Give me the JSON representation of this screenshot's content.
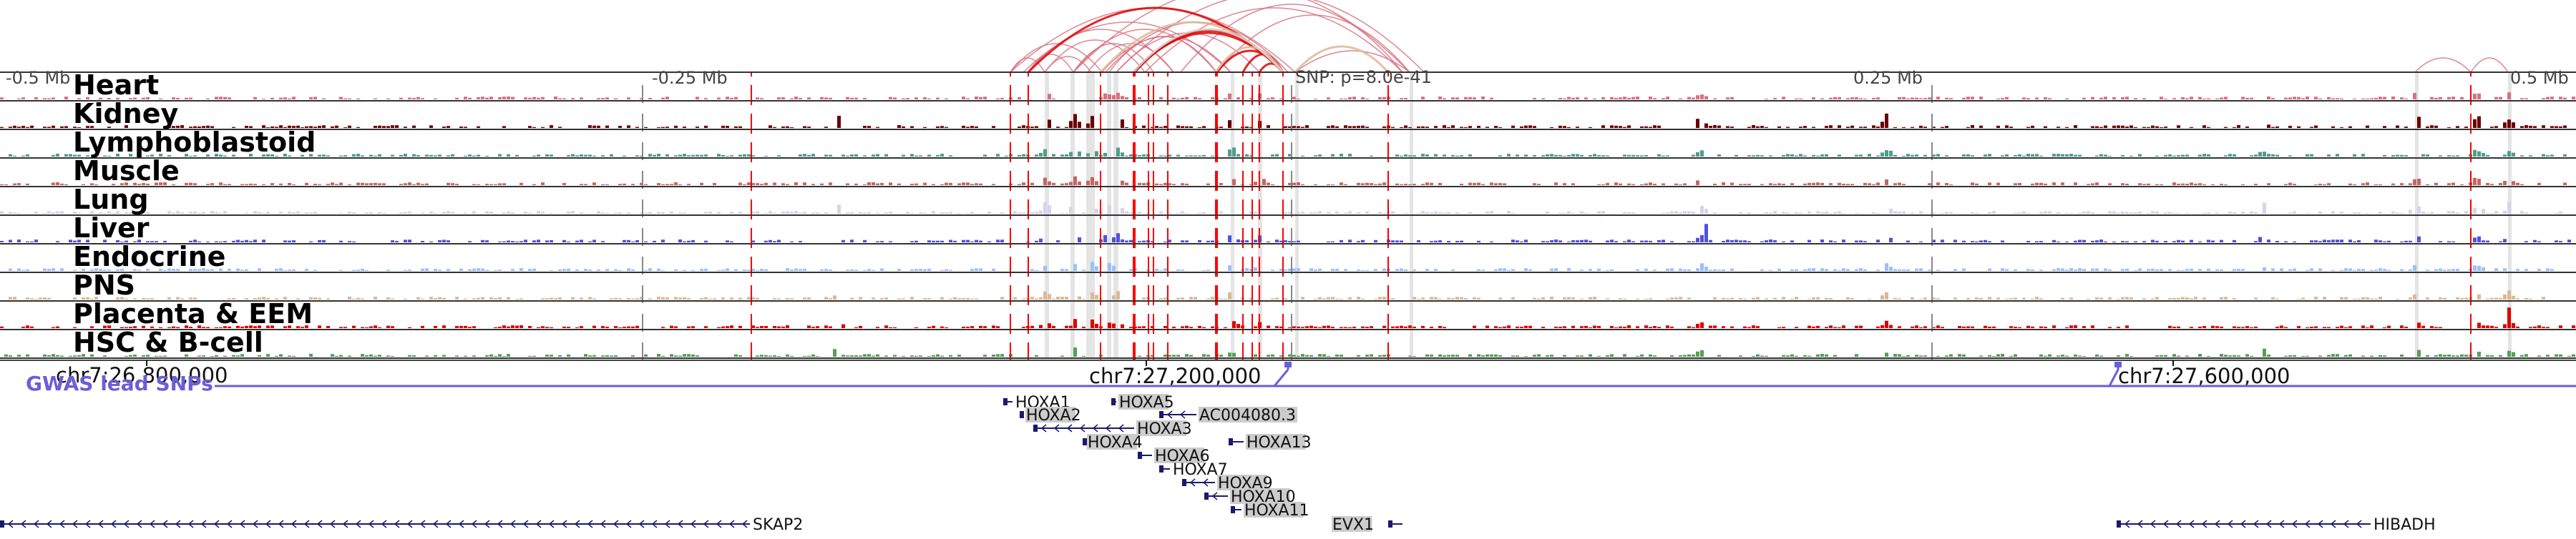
{
  "ruler": {
    "labels": [
      "-0.5 Mb",
      "-0.25 Mb",
      "0.25 Mb",
      "0.5 Mb"
    ],
    "snp_label": "SNP: p=8.0e-41"
  },
  "tracks": [
    {
      "name": "Heart",
      "color": "#d87080"
    },
    {
      "name": "Kidney",
      "color": "#6b0000"
    },
    {
      "name": "Lymphoblastoid",
      "color": "#4f9e8c"
    },
    {
      "name": "Muscle",
      "color": "#c56560"
    },
    {
      "name": "Lung",
      "color": "#dad2ea"
    },
    {
      "name": "Liver",
      "color": "#5050e0"
    },
    {
      "name": "Endocrine",
      "color": "#99c0ff"
    },
    {
      "name": "PNS",
      "color": "#ddb896"
    },
    {
      "name": "Placenta & EEM",
      "color": "#e00000"
    },
    {
      "name": "HSC & B-cell",
      "color": "#55a055"
    }
  ],
  "coordinates": {
    "left": "chr7:26,800,000",
    "center": "chr7:27,200,000",
    "right": "chr7:27,600,000"
  },
  "gwas": {
    "label": "GWAS lead SNPs",
    "color": "#6a5fd6"
  },
  "genes": [
    {
      "name": "HOXA1",
      "highlighted": false
    },
    {
      "name": "HOXA2",
      "highlighted": true
    },
    {
      "name": "HOXA3",
      "highlighted": true
    },
    {
      "name": "HOXA4",
      "highlighted": true
    },
    {
      "name": "HOXA5",
      "highlighted": true
    },
    {
      "name": "AC004080.3",
      "highlighted": true
    },
    {
      "name": "HOXA6",
      "highlighted": true
    },
    {
      "name": "HOXA7",
      "highlighted": false
    },
    {
      "name": "HOXA9",
      "highlighted": true
    },
    {
      "name": "HOXA10",
      "highlighted": true
    },
    {
      "name": "HOXA11",
      "highlighted": true
    },
    {
      "name": "HOXA13",
      "highlighted": true
    },
    {
      "name": "EVX1",
      "highlighted": true
    },
    {
      "name": "SKAP2",
      "highlighted": false
    },
    {
      "name": "HIBADH",
      "highlighted": false
    }
  ],
  "colors": {
    "snp_line": "#ff0000",
    "highlight_band": "#e4e4e4",
    "gene_model": "#1a1a6e",
    "gene_highlight": "#cccccc",
    "arc_light": "#d87080",
    "arc_strong": "#e00000",
    "arc_tan": "#ddb896",
    "arc_grey": "#d0d0d0"
  }
}
